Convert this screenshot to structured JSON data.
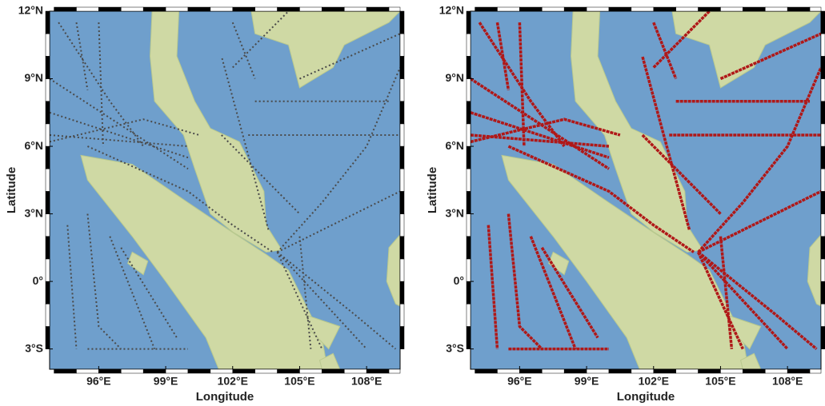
{
  "panels": [
    {
      "xlabel": "Longitude",
      "ylabel": "Latitude",
      "xlim": [
        93.8,
        109.5
      ],
      "ylim": [
        -3.9,
        12
      ],
      "track_color": "#4a4a4a",
      "xticks": [
        {
          "value": 96,
          "label": "96°E"
        },
        {
          "value": 99,
          "label": "99°E"
        },
        {
          "value": 102,
          "label": "102°E"
        },
        {
          "value": 105,
          "label": "105°E"
        },
        {
          "value": 108,
          "label": "108°E"
        }
      ],
      "yticks": [
        {
          "value": -3,
          "label": "3°S"
        },
        {
          "value": 0,
          "label": "0°"
        },
        {
          "value": 3,
          "label": "3°N"
        },
        {
          "value": 6,
          "label": "6°N"
        },
        {
          "value": 9,
          "label": "9°N"
        },
        {
          "value": 12,
          "label": "12°N"
        }
      ]
    },
    {
      "xlabel": "Longitude",
      "ylabel": "Latitude",
      "xlim": [
        93.8,
        109.5
      ],
      "ylim": [
        -3.9,
        12
      ],
      "track_color": "#b01818",
      "xticks": [
        {
          "value": 96,
          "label": "96°E"
        },
        {
          "value": 99,
          "label": "99°E"
        },
        {
          "value": 102,
          "label": "102°E"
        },
        {
          "value": 105,
          "label": "105°E"
        },
        {
          "value": 108,
          "label": "108°E"
        }
      ],
      "yticks": [
        {
          "value": -3,
          "label": "3°S"
        },
        {
          "value": 0,
          "label": "0°"
        },
        {
          "value": 3,
          "label": "3°N"
        },
        {
          "value": 6,
          "label": "6°N"
        },
        {
          "value": 9,
          "label": "9°N"
        },
        {
          "value": 12,
          "label": "12°N"
        }
      ]
    }
  ]
}
